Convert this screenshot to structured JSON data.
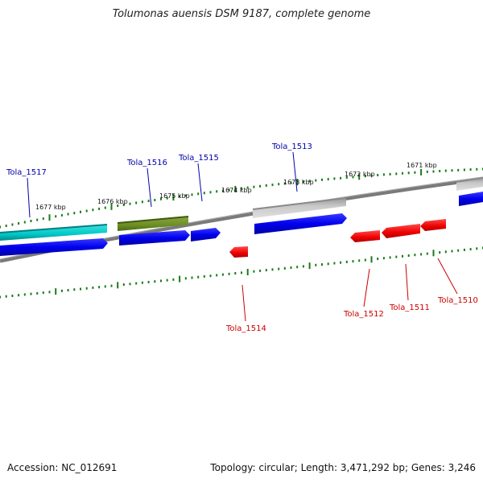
{
  "title": "Tolumonas auensis DSM 9187, complete genome",
  "accession": "Accession: NC_012691",
  "topology": "Topology: circular; Length: 3,471,292 bp; Genes: 3,246",
  "colors": {
    "backbone": "#808080",
    "tick": "#1a7a1a",
    "forward_label": "#0000aa",
    "reverse_label": "#cc0000",
    "blue_gene": "#0000ee",
    "cyan_gene": "#00c8c8",
    "olive_gene": "#6b8e23",
    "gray_gene": "#b8b8b8",
    "red_gene": "#ee0000"
  },
  "kbp_labels": [
    "1677 kbp",
    "1676 kbp",
    "1675 kbp",
    "1674 kbp",
    "1673 kbp",
    "1672 kbp",
    "1671 kbp"
  ],
  "forward_genes": [
    "Tola_1517",
    "Tola_1516",
    "Tola_1515",
    "Tola_1513"
  ],
  "reverse_genes": [
    "Tola_1514",
    "Tola_1512",
    "Tola_1511",
    "Tola_1510"
  ]
}
